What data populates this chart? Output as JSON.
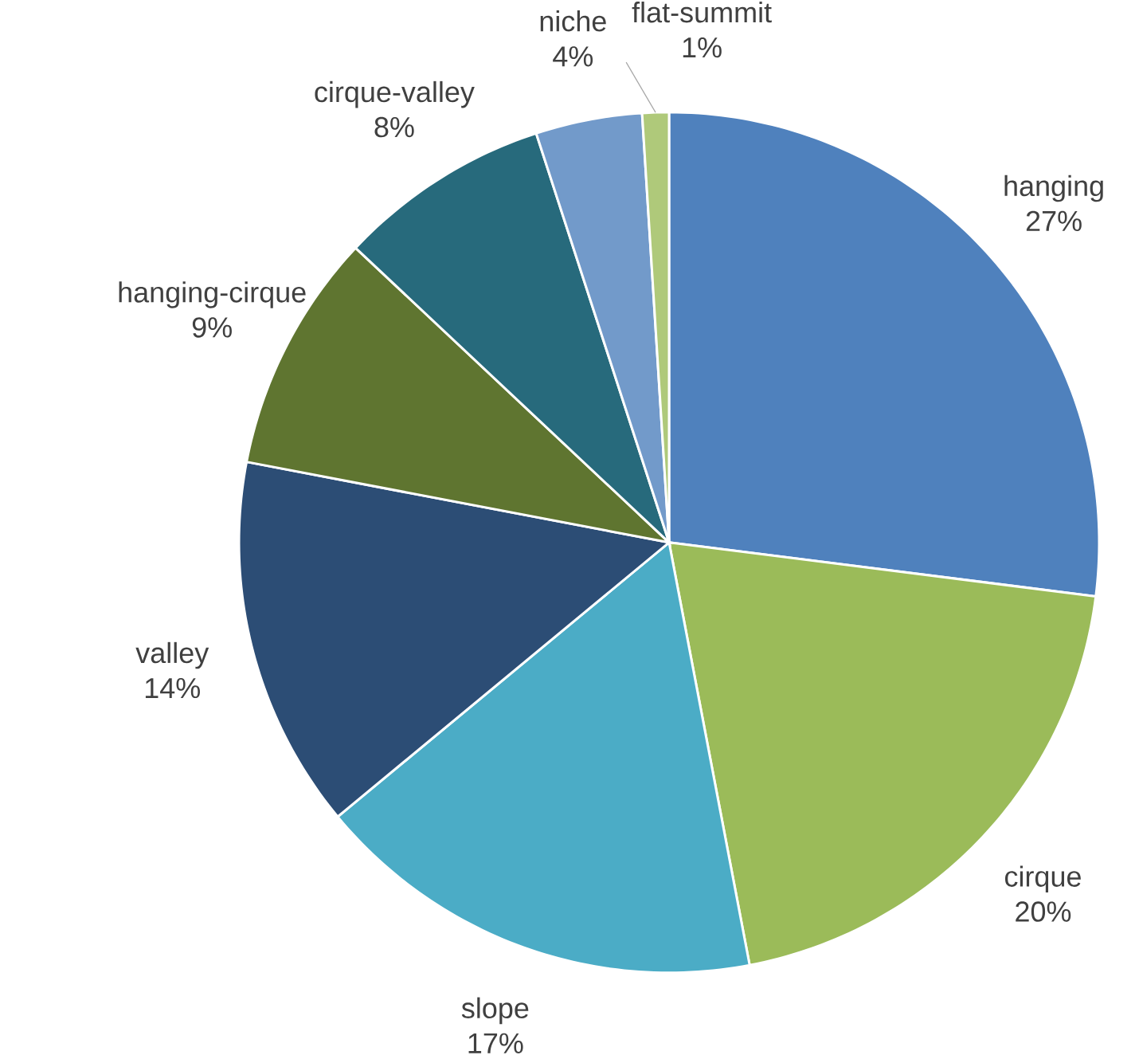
{
  "chart_data": {
    "type": "pie",
    "categories": [
      "hanging",
      "cirque",
      "slope",
      "valley",
      "hanging-cirque",
      "cirque-valley",
      "niche",
      "flat-summit"
    ],
    "values": [
      27,
      20,
      17,
      14,
      9,
      8,
      4,
      1
    ],
    "value_labels": [
      "27%",
      "20%",
      "17%",
      "14%",
      "9%",
      "8%",
      "4%",
      "1%"
    ],
    "colors": [
      "#4f81bd",
      "#9bbb59",
      "#4bacc6",
      "#2c4d75",
      "#5f7530",
      "#276a7c",
      "#729aca",
      "#afc97a"
    ]
  }
}
